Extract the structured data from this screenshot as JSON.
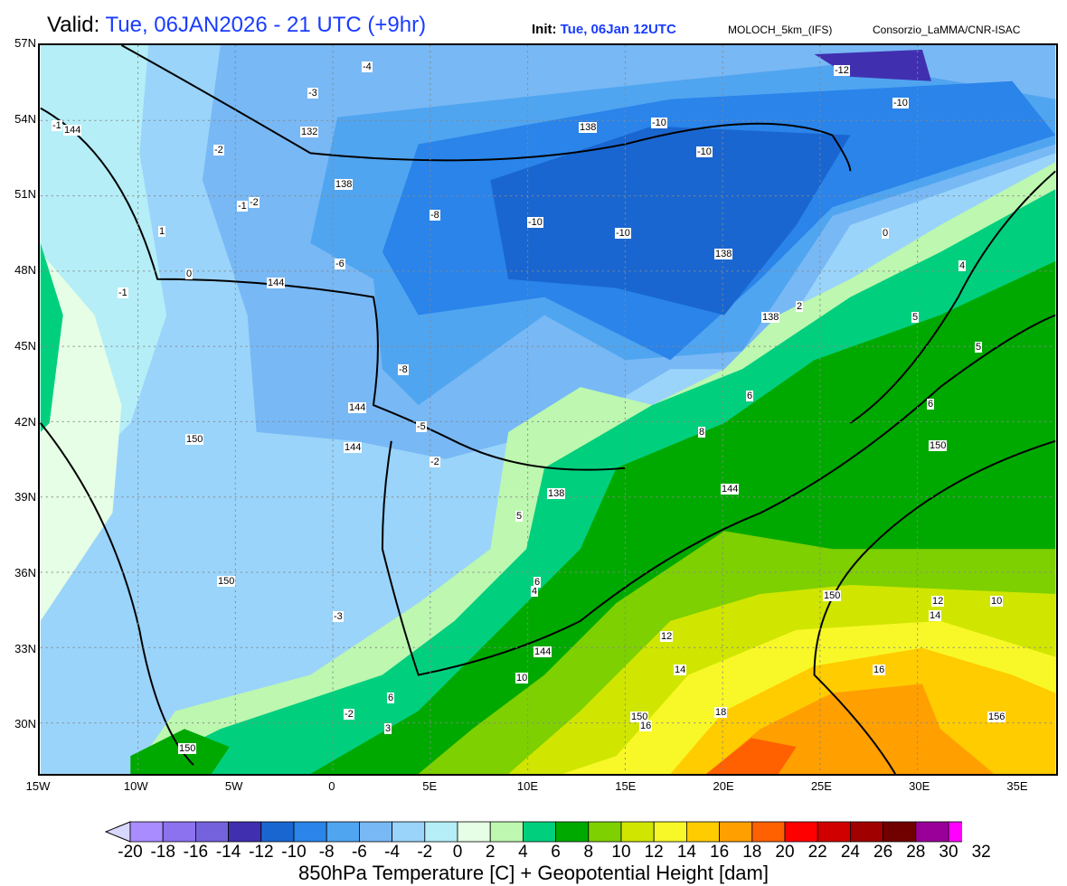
{
  "header": {
    "valid_label": "Valid:",
    "valid_value": "Tue, 06JAN2026 - 21 UTC (+9hr)",
    "init_label": "Init:",
    "init_value": "Tue, 06Jan 12UTC",
    "model": "MOLOCH_5km_(IFS)",
    "organization": "Consorzio_LaMMA/CNR-ISAC"
  },
  "map": {
    "lat_labels": [
      "57N",
      "54N",
      "51N",
      "48N",
      "45N",
      "42N",
      "39N",
      "36N",
      "33N",
      "30N"
    ],
    "lon_labels": [
      "15W",
      "10W",
      "5W",
      "0",
      "5E",
      "10E",
      "15E",
      "20E",
      "25E",
      "30E",
      "35E"
    ],
    "contour_labels": [
      "144",
      "138",
      "132",
      "138",
      "138",
      "138",
      "144",
      "144",
      "144",
      "150",
      "144",
      "150",
      "144",
      "138",
      "150",
      "156",
      "150",
      "150",
      "150",
      "-4",
      "-3",
      "-10",
      "-10",
      "-12",
      "-10",
      "-10",
      "-8",
      "-10",
      "-6",
      "-8",
      "-5",
      "-2",
      "-2",
      "-1",
      "0",
      "2",
      "4",
      "6",
      "8",
      "10",
      "12",
      "14",
      "16",
      "18",
      "16",
      "12",
      "14",
      "6",
      "6",
      "5",
      "5",
      "4",
      "0",
      "1",
      "-1",
      "-1",
      "-2",
      "-3",
      "-2",
      "3",
      "5",
      "6",
      "10"
    ]
  },
  "colorbar": {
    "title": "850hPa Temperature [C] + Geopotential Height [dam]",
    "ticks": [
      "-20",
      "-18",
      "-16",
      "-14",
      "-12",
      "-10",
      "-8",
      "-6",
      "-4",
      "-2",
      "0",
      "2",
      "4",
      "6",
      "8",
      "10",
      "12",
      "14",
      "16",
      "18",
      "20",
      "22",
      "24",
      "26",
      "28",
      "30",
      "32"
    ],
    "colors": [
      "#a98cff",
      "#8c72ee",
      "#7462dc",
      "#4030b0",
      "#1a66d0",
      "#2a84ea",
      "#50a5f0",
      "#78b8f5",
      "#9ad4fa",
      "#b5eef7",
      "#e6fee6",
      "#bdf7b0",
      "#00d07e",
      "#00a900",
      "#7ed000",
      "#d0e600",
      "#f8f828",
      "#ffcc00",
      "#ff9f00",
      "#ff6000",
      "#ff0000",
      "#d00000",
      "#a00000",
      "#700000",
      "#9a0099",
      "#ff00ff"
    ],
    "under_color": "#d8d8ff",
    "over_color": "#ffa0ff"
  }
}
